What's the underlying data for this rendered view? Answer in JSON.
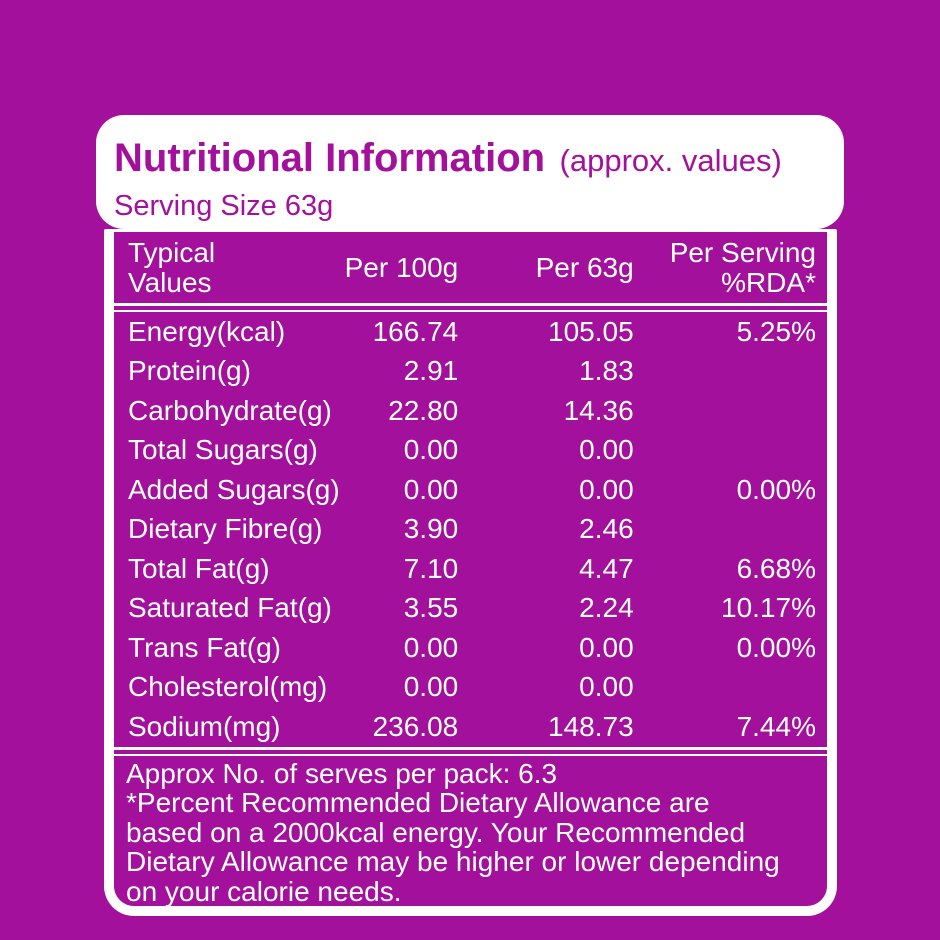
{
  "colors": {
    "background_purple": "#a2109c",
    "card_white": "#ffffff",
    "header_text_purple": "#a2109c",
    "table_text_white": "#ffffff"
  },
  "header": {
    "title": "Nutritional Information",
    "title_suffix": "(approx. values)",
    "serving_size": "Serving Size 63g"
  },
  "table": {
    "columns": [
      "Typical\nValues",
      "Per 100g",
      "Per 63g",
      "Per Serving\n%RDA*"
    ],
    "rows": [
      {
        "label": "Energy(kcal)",
        "per_100g": "166.74",
        "per_63g": "105.05",
        "rda": "5.25%"
      },
      {
        "label": "Protein(g)",
        "per_100g": "2.91",
        "per_63g": "1.83",
        "rda": ""
      },
      {
        "label": "Carbohydrate(g)",
        "per_100g": "22.80",
        "per_63g": "14.36",
        "rda": ""
      },
      {
        "label": "Total Sugars(g)",
        "per_100g": "0.00",
        "per_63g": "0.00",
        "rda": ""
      },
      {
        "label": "Added Sugars(g)",
        "per_100g": "0.00",
        "per_63g": "0.00",
        "rda": "0.00%"
      },
      {
        "label": "Dietary Fibre(g)",
        "per_100g": "3.90",
        "per_63g": "2.46",
        "rda": ""
      },
      {
        "label": "Total Fat(g)",
        "per_100g": "7.10",
        "per_63g": "4.47",
        "rda": "6.68%"
      },
      {
        "label": "Saturated Fat(g)",
        "per_100g": "3.55",
        "per_63g": "2.24",
        "rda": "10.17%"
      },
      {
        "label": "Trans Fat(g)",
        "per_100g": "0.00",
        "per_63g": "0.00",
        "rda": "0.00%"
      },
      {
        "label": "Cholesterol(mg)",
        "per_100g": "0.00",
        "per_63g": "0.00",
        "rda": ""
      },
      {
        "label": "Sodium(mg)",
        "per_100g": "236.08",
        "per_63g": "148.73",
        "rda": "7.44%"
      }
    ]
  },
  "footer": {
    "serves_line": "Approx No. of serves per pack: 6.3",
    "disclaimer": "*Percent Recommended Dietary Allowance are\nbased on a 2000kcal energy. Your Recommended\nDietary Allowance may be higher or lower depending\non your calorie needs."
  }
}
